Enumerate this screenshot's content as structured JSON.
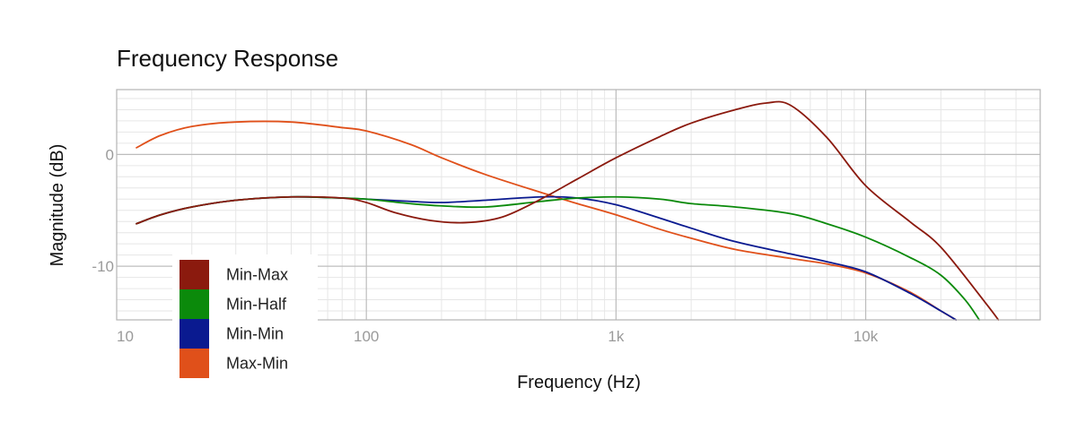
{
  "chart_data": {
    "type": "line",
    "title": "Frequency Response",
    "xlabel": "Frequency (Hz)",
    "ylabel": "Magnitude (dB)",
    "xscale": "log",
    "xlim": [
      10,
      50000
    ],
    "ylim": [
      -14.8,
      5.8
    ],
    "grid": true,
    "legend_position": "bottom-left",
    "x_ticks": [
      {
        "value": 10,
        "label": "10"
      },
      {
        "value": 100,
        "label": "100"
      },
      {
        "value": 1000,
        "label": "1k"
      },
      {
        "value": 10000,
        "label": "10k"
      }
    ],
    "y_ticks": [
      {
        "value": 0,
        "label": "0"
      },
      {
        "value": -10,
        "label": "-10"
      }
    ],
    "series": [
      {
        "name": "Min-Max",
        "color": "#8b1a0e",
        "x": [
          12,
          15,
          20,
          30,
          50,
          80,
          100,
          130,
          180,
          250,
          350,
          500,
          700,
          1000,
          1500,
          2000,
          3000,
          4000,
          5000,
          7000,
          10000,
          15000,
          20000,
          30000,
          34000
        ],
        "y": [
          -6.2,
          -5.4,
          -4.7,
          -4.1,
          -3.8,
          -3.9,
          -4.3,
          -5.2,
          -5.9,
          -6.1,
          -5.6,
          -4.0,
          -2.2,
          -0.3,
          1.6,
          2.8,
          4.0,
          4.6,
          4.4,
          1.5,
          -2.8,
          -6.0,
          -8.3,
          -13.2,
          -14.8
        ]
      },
      {
        "name": "Min-Half",
        "color": "#0b8a0b",
        "x": [
          12,
          15,
          20,
          30,
          50,
          80,
          100,
          150,
          200,
          300,
          500,
          700,
          1000,
          1500,
          2000,
          3000,
          5000,
          7000,
          10000,
          15000,
          20000,
          25000,
          28500
        ],
        "y": [
          -6.2,
          -5.4,
          -4.7,
          -4.1,
          -3.8,
          -3.9,
          -4.0,
          -4.4,
          -4.6,
          -4.7,
          -4.2,
          -3.9,
          -3.8,
          -4.0,
          -4.4,
          -4.7,
          -5.3,
          -6.2,
          -7.4,
          -9.2,
          -10.8,
          -13.0,
          -14.8
        ]
      },
      {
        "name": "Min-Min",
        "color": "#0a1a90",
        "x": [
          12,
          15,
          20,
          30,
          50,
          80,
          100,
          150,
          200,
          300,
          500,
          700,
          1000,
          1500,
          2000,
          3000,
          5000,
          7000,
          10000,
          15000,
          20000,
          23000
        ],
        "y": [
          -6.2,
          -5.4,
          -4.7,
          -4.1,
          -3.8,
          -3.9,
          -4.0,
          -4.2,
          -4.3,
          -4.1,
          -3.8,
          -3.9,
          -4.5,
          -5.7,
          -6.6,
          -7.8,
          -8.9,
          -9.6,
          -10.5,
          -12.4,
          -14.0,
          -14.8
        ]
      },
      {
        "name": "Max-Min",
        "color": "#e0501a",
        "x": [
          12,
          15,
          20,
          30,
          50,
          80,
          100,
          150,
          200,
          300,
          500,
          700,
          1000,
          1500,
          2000,
          3000,
          5000,
          7000,
          10000,
          15000,
          20000,
          23000
        ],
        "y": [
          0.6,
          1.7,
          2.5,
          2.9,
          2.9,
          2.4,
          2.1,
          0.9,
          -0.3,
          -1.8,
          -3.4,
          -4.4,
          -5.4,
          -6.7,
          -7.5,
          -8.5,
          -9.3,
          -9.8,
          -10.6,
          -12.3,
          -14.0,
          -14.8
        ]
      }
    ]
  }
}
